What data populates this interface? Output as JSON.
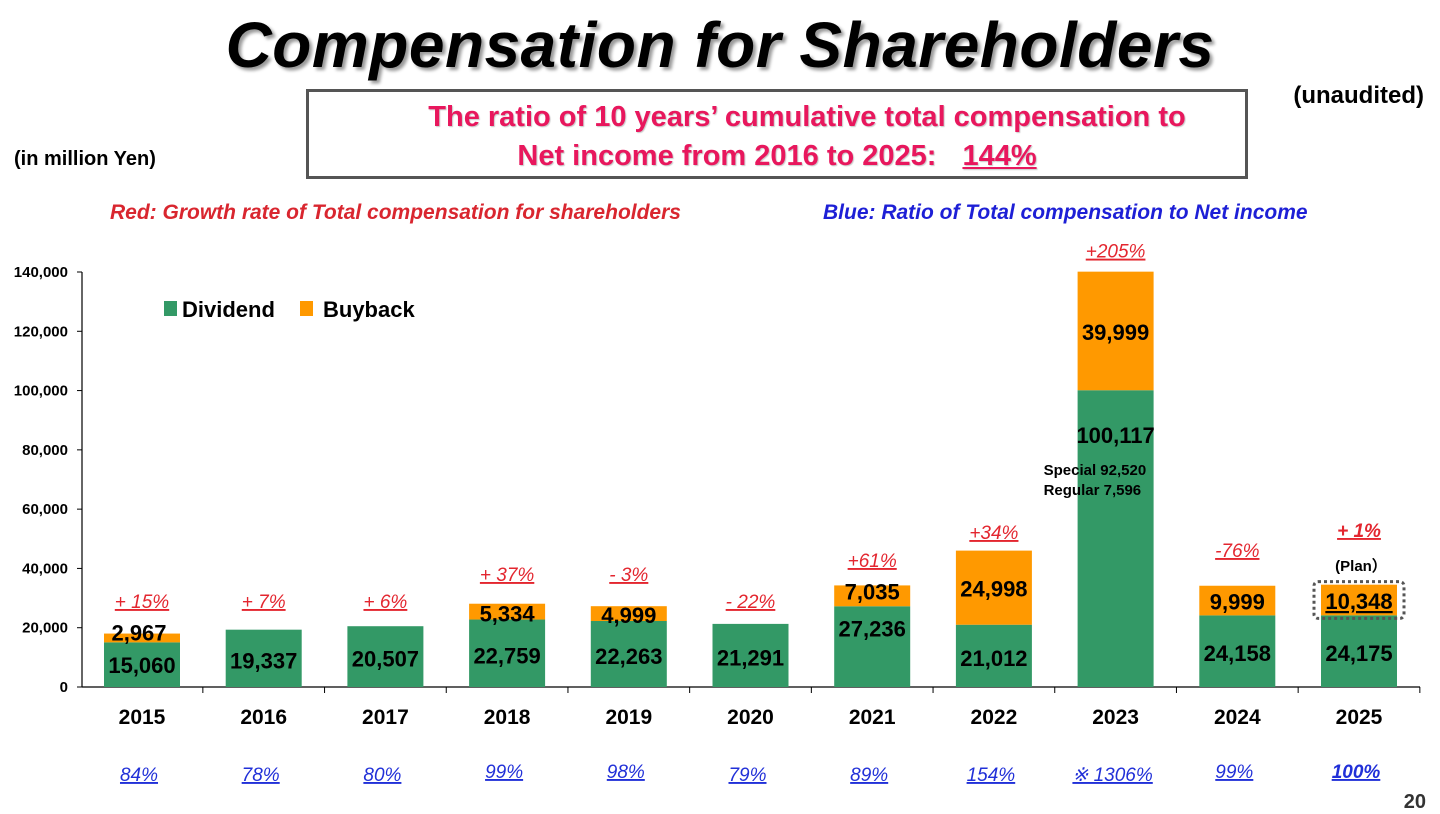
{
  "slide": {
    "title": "Compensation for Shareholders",
    "unaudited": "(unaudited)",
    "unit": "(in million Yen)",
    "ratio_line1": "The ratio of 10 years’ cumulative total compensation to",
    "ratio_line2": "Net income from 2016 to 2025:",
    "ratio_value": "144%",
    "note_red": "Red: Growth rate of Total compensation for shareholders",
    "note_blue": "Blue: Ratio of Total compensation to Net income",
    "page_number": "20"
  },
  "chart_data": {
    "type": "bar",
    "stacked": true,
    "categories": [
      "2015",
      "2016",
      "2017",
      "2018",
      "2019",
      "2020",
      "2021",
      "2022",
      "2023",
      "2024",
      "2025"
    ],
    "series": [
      {
        "name": "Dividend",
        "color": "#339966",
        "values": [
          15060,
          19337,
          20507,
          22759,
          22263,
          21291,
          27236,
          21012,
          100117,
          24158,
          24175
        ]
      },
      {
        "name": "Buyback",
        "color": "#ff9900",
        "values": [
          2967,
          0,
          0,
          5334,
          4999,
          0,
          7035,
          24998,
          39999,
          9999,
          10348
        ]
      }
    ],
    "dividend_labels": [
      "15,060",
      "19,337",
      "20,507",
      "22,759",
      "22,263",
      "21,291",
      "27,236",
      "21,012",
      "100,117",
      "24,158",
      "24,175"
    ],
    "buyback_labels": [
      "2,967",
      "",
      "",
      "5,334",
      "4,999",
      "",
      "7,035",
      "24,998",
      "39,999",
      "9,999",
      "10,348"
    ],
    "growth_rates": [
      "+ 15%",
      "+ 7%",
      "+ 6%",
      "+ 37%",
      "- 3%",
      "- 22%",
      "+61%",
      "+34%",
      "+205%",
      "-76%",
      "+ 1%"
    ],
    "payout_ratios": [
      "84%",
      "78%",
      "80%",
      "99%",
      "98%",
      "79%",
      "89%",
      "154%",
      "※ 1306%",
      "99%",
      "100%"
    ],
    "y_ticks": [
      "0",
      "20,000",
      "40,000",
      "60,000",
      "80,000",
      "100,000",
      "120,000",
      "140,000"
    ],
    "ylim": [
      0,
      140000
    ],
    "annotations": {
      "special": "Special 92,520",
      "regular": "Regular  7,596",
      "plan": "(Plan）"
    },
    "grid": false,
    "legend_placement": "top-left"
  }
}
